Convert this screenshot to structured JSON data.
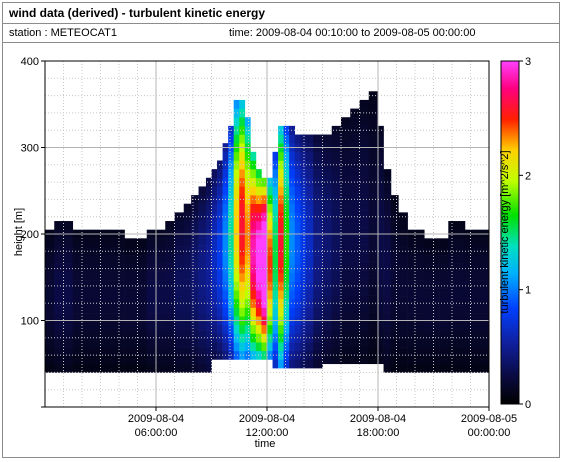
{
  "header": {
    "title": "wind data (derived) - turbulent kinetic energy",
    "station": "station : METEOCAT1",
    "time_range": "time: 2009-08-04 00:10:00 to 2009-08-05 00:00:00"
  },
  "chart_data": {
    "type": "heatmap",
    "xlabel": "time",
    "ylabel": "height [m]",
    "colorbar_label": "turbulent kinetic energy [m^2/s^2]",
    "xlim_hours": [
      0,
      24
    ],
    "ylim": [
      0,
      400
    ],
    "clim": [
      0,
      3
    ],
    "y_ticks": [
      100,
      200,
      300,
      400
    ],
    "x_ticks": [
      {
        "hour": 6,
        "line1": "2009-08-04",
        "line2": "06:00:00"
      },
      {
        "hour": 12,
        "line1": "2009-08-04",
        "line2": "12:00:00"
      },
      {
        "hour": 18,
        "line1": "2009-08-04",
        "line2": "18:00:00"
      },
      {
        "hour": 24,
        "line1": "2009-08-05",
        "line2": "00:00:00"
      }
    ],
    "colorbar_ticks": [
      0,
      1,
      2,
      3
    ],
    "grid": true,
    "columns": [
      {
        "hour": 0.0,
        "hmin": 40,
        "hmax": 205,
        "tke": 0.15
      },
      {
        "hour": 0.5,
        "hmin": 40,
        "hmax": 215,
        "tke": 0.2
      },
      {
        "hour": 1.5,
        "hmin": 40,
        "hmax": 205,
        "tke": 0.15
      },
      {
        "hour": 2.5,
        "hmin": 40,
        "hmax": 205,
        "tke": 0.15
      },
      {
        "hour": 3.5,
        "hmin": 40,
        "hmax": 205,
        "tke": 0.15
      },
      {
        "hour": 4.3,
        "hmin": 40,
        "hmax": 195,
        "tke": 0.15
      },
      {
        "hour": 5.0,
        "hmin": 40,
        "hmax": 195,
        "tke": 0.15
      },
      {
        "hour": 5.5,
        "hmin": 40,
        "hmax": 205,
        "tke": 0.2
      },
      {
        "hour": 6.0,
        "hmin": 40,
        "hmax": 205,
        "tke": 0.2
      },
      {
        "hour": 6.5,
        "hmin": 40,
        "hmax": 215,
        "tke": 0.2
      },
      {
        "hour": 7.0,
        "hmin": 40,
        "hmax": 225,
        "tke": 0.25
      },
      {
        "hour": 7.5,
        "hmin": 40,
        "hmax": 235,
        "tke": 0.25
      },
      {
        "hour": 7.9,
        "hmin": 40,
        "hmax": 245,
        "tke": 0.3
      },
      {
        "hour": 8.3,
        "hmin": 40,
        "hmax": 255,
        "tke": 0.35
      },
      {
        "hour": 8.7,
        "hmin": 40,
        "hmax": 265,
        "tke": 0.4
      },
      {
        "hour": 9.0,
        "hmin": 55,
        "hmax": 275,
        "tke": 0.5
      },
      {
        "hour": 9.3,
        "hmin": 55,
        "hmax": 285,
        "tke": 0.6
      },
      {
        "hour": 9.6,
        "hmin": 55,
        "hmax": 305,
        "tke": 0.8
      },
      {
        "hour": 9.9,
        "hmin": 55,
        "hmax": 325,
        "tke": 1.1
      },
      {
        "hour": 10.2,
        "hmin": 55,
        "hmax": 355,
        "tke": 1.7
      },
      {
        "hour": 10.5,
        "hmin": 55,
        "hmax": 355,
        "tke": 2.0
      },
      {
        "hour": 10.8,
        "hmin": 55,
        "hmax": 335,
        "tke": 1.8
      },
      {
        "hour": 11.1,
        "hmin": 55,
        "hmax": 295,
        "tke": 2.2
      },
      {
        "hour": 11.4,
        "hmin": 55,
        "hmax": 275,
        "tke": 2.4
      },
      {
        "hour": 11.7,
        "hmin": 55,
        "hmax": 265,
        "tke": 2.7
      },
      {
        "hour": 12.0,
        "hmin": 55,
        "hmax": 265,
        "tke": 1.9
      },
      {
        "hour": 12.3,
        "hmin": 45,
        "hmax": 295,
        "tke": 1.2
      },
      {
        "hour": 12.6,
        "hmin": 45,
        "hmax": 325,
        "tke": 2.0
      },
      {
        "hour": 12.9,
        "hmin": 45,
        "hmax": 325,
        "tke": 1.3
      },
      {
        "hour": 13.2,
        "hmin": 45,
        "hmax": 325,
        "tke": 0.8
      },
      {
        "hour": 13.5,
        "hmin": 45,
        "hmax": 315,
        "tke": 0.7
      },
      {
        "hour": 13.8,
        "hmin": 45,
        "hmax": 315,
        "tke": 0.6
      },
      {
        "hour": 14.1,
        "hmin": 45,
        "hmax": 315,
        "tke": 0.5
      },
      {
        "hour": 14.5,
        "hmin": 45,
        "hmax": 315,
        "tke": 0.35
      },
      {
        "hour": 15.0,
        "hmin": 50,
        "hmax": 315,
        "tke": 0.3
      },
      {
        "hour": 15.5,
        "hmin": 50,
        "hmax": 325,
        "tke": 0.25
      },
      {
        "hour": 16.0,
        "hmin": 50,
        "hmax": 335,
        "tke": 0.2
      },
      {
        "hour": 16.5,
        "hmin": 50,
        "hmax": 345,
        "tke": 0.2
      },
      {
        "hour": 17.0,
        "hmin": 50,
        "hmax": 355,
        "tke": 0.2
      },
      {
        "hour": 17.5,
        "hmin": 50,
        "hmax": 365,
        "tke": 0.15
      },
      {
        "hour": 18.0,
        "hmin": 50,
        "hmax": 325,
        "tke": 0.2
      },
      {
        "hour": 18.3,
        "hmin": 40,
        "hmax": 275,
        "tke": 0.2
      },
      {
        "hour": 18.7,
        "hmin": 40,
        "hmax": 245,
        "tke": 0.15
      },
      {
        "hour": 19.1,
        "hmin": 40,
        "hmax": 225,
        "tke": 0.15
      },
      {
        "hour": 19.6,
        "hmin": 40,
        "hmax": 205,
        "tke": 0.15
      },
      {
        "hour": 20.5,
        "hmin": 40,
        "hmax": 195,
        "tke": 0.15
      },
      {
        "hour": 21.3,
        "hmin": 40,
        "hmax": 195,
        "tke": 0.15
      },
      {
        "hour": 21.8,
        "hmin": 40,
        "hmax": 215,
        "tke": 0.15
      },
      {
        "hour": 22.7,
        "hmin": 40,
        "hmax": 205,
        "tke": 0.15
      },
      {
        "hour": 23.5,
        "hmin": 40,
        "hmax": 205,
        "tke": 0.15
      }
    ]
  }
}
